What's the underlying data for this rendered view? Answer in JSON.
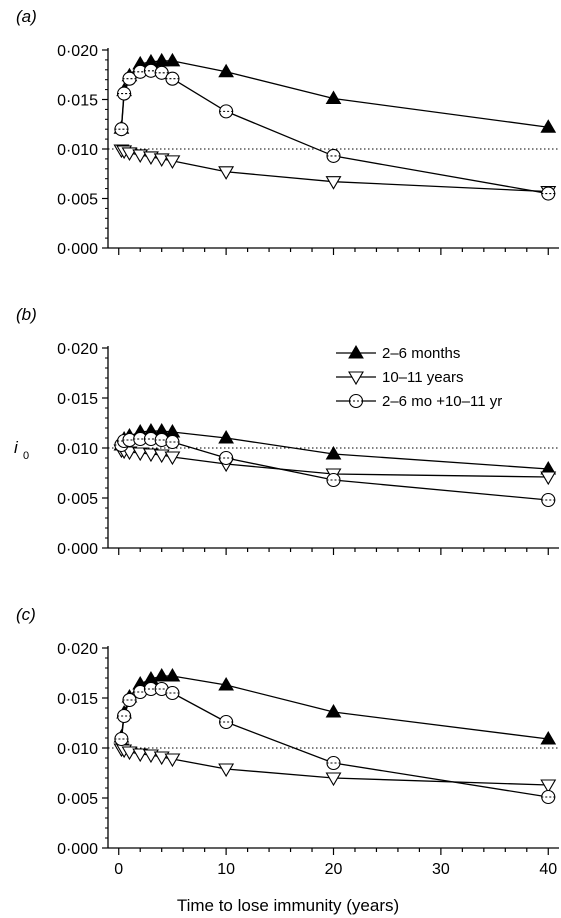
{
  "figure": {
    "ylabel_main": "i",
    "ylabel_sub": "0",
    "xlabel": "Time to lose immunity (years)",
    "reference_line_y": 0.01
  },
  "chart_data": [
    {
      "type": "line",
      "panel": "(a)",
      "x": [
        0.25,
        0.5,
        1,
        2,
        3,
        4,
        5,
        10,
        20,
        40
      ],
      "xlim": [
        -1,
        41
      ],
      "ylim": [
        0,
        0.02
      ],
      "yticks": [
        0.0,
        0.005,
        0.01,
        0.015,
        0.02
      ],
      "ytick_labels": [
        "0·000",
        "0·005",
        "0·010",
        "0·015",
        "0·020"
      ],
      "series": [
        {
          "name": "2–6 months",
          "marker": "filled-triangle-up",
          "values": [
            0.0121,
            0.0159,
            0.0174,
            0.0186,
            0.0188,
            0.0189,
            0.0189,
            0.0178,
            0.0151,
            0.0122
          ]
        },
        {
          "name": "10–11 years",
          "marker": "open-triangle-down",
          "values": [
            0.0099,
            0.0098,
            0.0096,
            0.0094,
            0.0092,
            0.009,
            0.0088,
            0.0077,
            0.0067,
            0.0057
          ]
        },
        {
          "name": "2–6 mo +10–11 yr",
          "marker": "open-circle",
          "values": [
            0.012,
            0.0156,
            0.0171,
            0.0178,
            0.0179,
            0.0177,
            0.0171,
            0.0138,
            0.0093,
            0.0055
          ]
        }
      ]
    },
    {
      "type": "line",
      "panel": "(b)",
      "x": [
        0.25,
        0.5,
        1,
        2,
        3,
        4,
        5,
        10,
        20,
        40
      ],
      "xlim": [
        -1,
        41
      ],
      "ylim": [
        0,
        0.02
      ],
      "yticks": [
        0.0,
        0.005,
        0.01,
        0.015,
        0.02
      ],
      "ytick_labels": [
        "0·000",
        "0·005",
        "0·010",
        "0·015",
        "0·020"
      ],
      "series": [
        {
          "name": "2–6 months",
          "marker": "filled-triangle-up",
          "values": [
            0.0103,
            0.0109,
            0.0112,
            0.0116,
            0.0117,
            0.0117,
            0.0116,
            0.011,
            0.0094,
            0.0079
          ]
        },
        {
          "name": "10–11 years",
          "marker": "open-triangle-down",
          "values": [
            0.0098,
            0.0097,
            0.0096,
            0.0095,
            0.0094,
            0.0093,
            0.0091,
            0.0084,
            0.0074,
            0.0071
          ]
        },
        {
          "name": "2–6 mo +10–11 yr",
          "marker": "open-circle",
          "values": [
            0.0103,
            0.0107,
            0.0108,
            0.0109,
            0.0109,
            0.0108,
            0.0106,
            0.009,
            0.0068,
            0.0048
          ]
        }
      ]
    },
    {
      "type": "line",
      "panel": "(c)",
      "x": [
        0.25,
        0.5,
        1,
        2,
        3,
        4,
        5,
        10,
        20,
        40
      ],
      "xlim": [
        -1,
        41
      ],
      "ylim": [
        0,
        0.02
      ],
      "yticks": [
        0.0,
        0.005,
        0.01,
        0.015,
        0.02
      ],
      "ytick_labels": [
        "0·000",
        "0·005",
        "0·010",
        "0·015",
        "0·020"
      ],
      "xticks": [
        0,
        10,
        20,
        30,
        40
      ],
      "series": [
        {
          "name": "2–6 months",
          "marker": "filled-triangle-up",
          "values": [
            0.0111,
            0.0135,
            0.0151,
            0.0164,
            0.0169,
            0.0172,
            0.0172,
            0.0163,
            0.0136,
            0.0109
          ]
        },
        {
          "name": "10–11 years",
          "marker": "open-triangle-down",
          "values": [
            0.0099,
            0.0098,
            0.0096,
            0.0094,
            0.0093,
            0.0091,
            0.0089,
            0.0079,
            0.007,
            0.0063
          ]
        },
        {
          "name": "2–6 mo +10–11 yr",
          "marker": "open-circle",
          "values": [
            0.0109,
            0.0132,
            0.0148,
            0.0156,
            0.0159,
            0.0159,
            0.0155,
            0.0126,
            0.0085,
            0.0051
          ]
        }
      ]
    }
  ],
  "legend": {
    "placement": "panel (b), top-right",
    "entries": [
      "2–6 months",
      "10–11 years",
      "2–6 mo +10–11 yr"
    ]
  }
}
